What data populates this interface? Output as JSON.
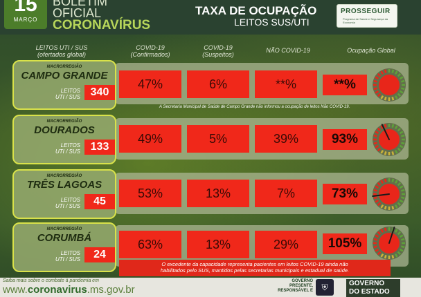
{
  "header": {
    "day": "15",
    "month": "MARÇO",
    "bulletin_line1": "BOLETIM",
    "bulletin_line2": "OFICIAL",
    "bulletin_line3": "CORONAVÍRUS",
    "title": "TAXA DE OCUPAÇÃO",
    "subtitle": "LEITOS SUS/UTI",
    "logo_name": "PROSSEGUIR",
    "logo_sub": "Programa de Saúde e Segurança da Economia"
  },
  "columns": {
    "leitos_line1": "LEITOS UTI / SUS",
    "leitos_line2": "(ofertados global)",
    "conf_line1": "COVID-19",
    "conf_line2": "(Confirmados)",
    "susp_line1": "COVID-19",
    "susp_line2": "(Suspeitos)",
    "nao": "NÃO COVID-19",
    "global": "Ocupação Global"
  },
  "rows": [
    {
      "macro": "MACRORREGIÃO",
      "name": "CAMPO GRANDE",
      "leitos_line1": "LEITOS",
      "leitos_line2": "UTI / SUS",
      "leitos": "340",
      "confirmados": "47%",
      "suspeitos": "6%",
      "nao_covid": "**%",
      "global": "**%",
      "needle_pct": null
    },
    {
      "macro": "MACRORREGIÃO",
      "name": "DOURADOS",
      "leitos_line1": "LEITOS",
      "leitos_line2": "UTI / SUS",
      "leitos": "133",
      "confirmados": "49%",
      "suspeitos": "5%",
      "nao_covid": "39%",
      "global": "93%",
      "needle_pct": 93
    },
    {
      "macro": "MACRORREGIÃO",
      "name": "TRÊS LAGOAS",
      "leitos_line1": "LEITOS",
      "leitos_line2": "UTI / SUS",
      "leitos": "45",
      "confirmados": "53%",
      "suspeitos": "13%",
      "nao_covid": "7%",
      "global": "73%",
      "needle_pct": 73
    },
    {
      "macro": "MACRORREGIÃO",
      "name": "CORUMBÁ",
      "leitos_line1": "LEITOS",
      "leitos_line2": "UTI / SUS",
      "leitos": "24",
      "confirmados": "63%",
      "suspeitos": "13%",
      "nao_covid": "29%",
      "global": "105%",
      "needle_pct": 105
    }
  ],
  "notes": {
    "campo_grande": "A Secretaria Municipal de Saúde de Campo Grande não informou a ocupação de leitos Não COVID-19.",
    "excedente_line1": "O excedente da capacidade representa pacientes em leitos COVID-19 ainda não",
    "excedente_line2": "habilitados pelo SUS, mantidos pelas secretarias municipais e estadual de saúde."
  },
  "footer": {
    "saiba": "Saiba mais sobre o combate à pandemia em",
    "www_prefix": "www.",
    "www_main": "coronavirus",
    "www_suffix": ".ms.gov.br",
    "gp_line1": "GOVERNO",
    "gp_line2": "PRESENTE,",
    "gp_line3": "RESPONSÁVEL E",
    "gov_line1": "GOVERNO",
    "gov_line2": "DO ESTADO"
  },
  "colors": {
    "cell": "#f0281a",
    "accent": "#d9e24a",
    "gauge_red": "#e8261a",
    "gauge_green": "#5fa13a"
  }
}
